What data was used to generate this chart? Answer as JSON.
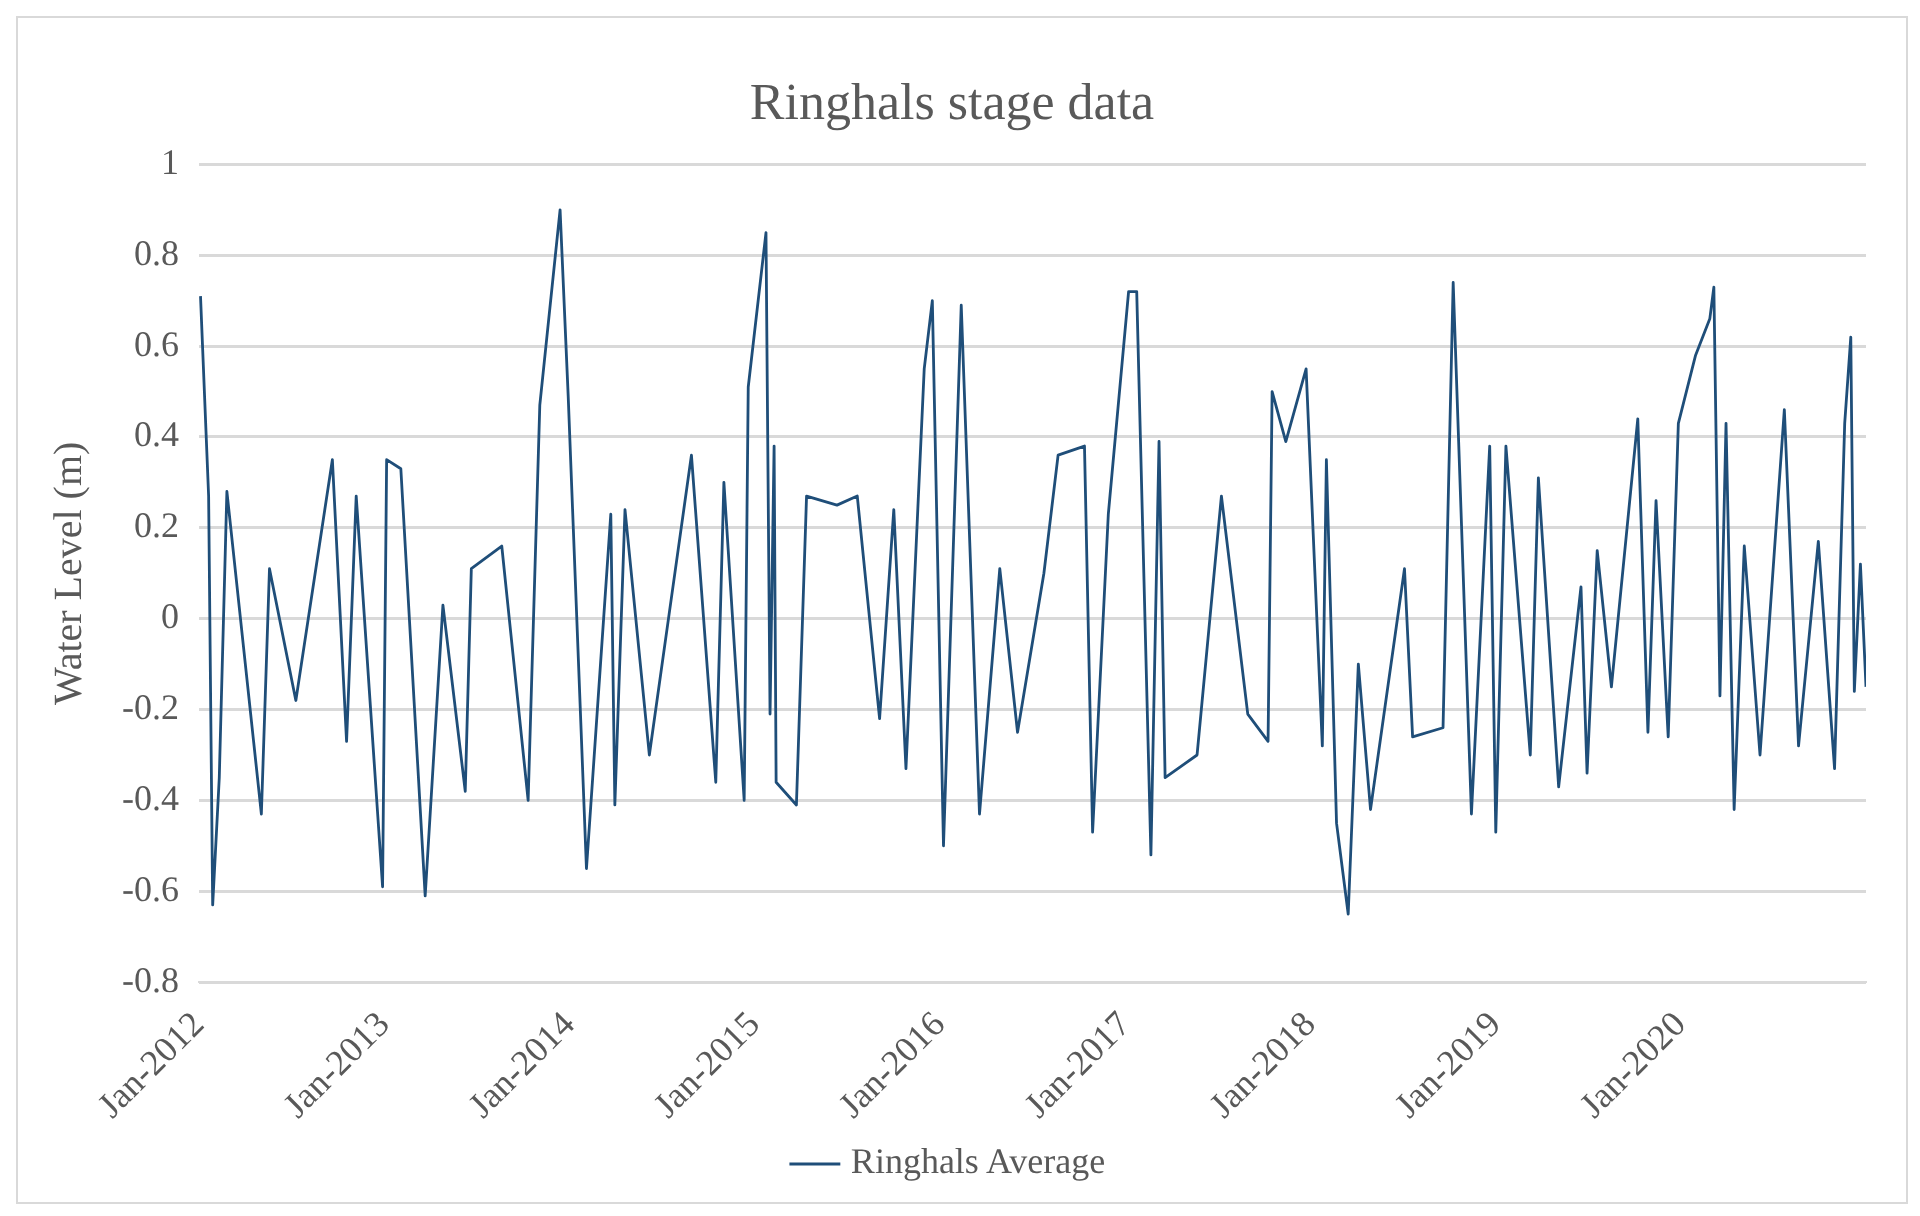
{
  "chart_data": {
    "type": "line",
    "title": "Ringhals stage data",
    "ylabel": "Water Level (m)",
    "xlim": [
      "2012-01-01",
      "2020-12-31"
    ],
    "xticks": [
      {
        "value": "2012-01-01",
        "label": "Jan-2012"
      },
      {
        "value": "2013-01-01",
        "label": "Jan-2013"
      },
      {
        "value": "2014-01-01",
        "label": "Jan-2014"
      },
      {
        "value": "2015-01-01",
        "label": "Jan-2015"
      },
      {
        "value": "2016-01-01",
        "label": "Jan-2016"
      },
      {
        "value": "2017-01-01",
        "label": "Jan-2017"
      },
      {
        "value": "2018-01-01",
        "label": "Jan-2018"
      },
      {
        "value": "2019-01-01",
        "label": "Jan-2019"
      },
      {
        "value": "2020-01-01",
        "label": "Jan-2020"
      }
    ],
    "ylim": [
      -0.8,
      1
    ],
    "yticks": [
      -0.8,
      -0.6,
      -0.4,
      -0.2,
      0,
      0.2,
      0.4,
      0.6,
      0.8,
      1
    ],
    "grid": "y",
    "legend": "bottom",
    "marker": "none",
    "line_style": "solid",
    "series": [
      {
        "name": "Ringhals Average",
        "color": "#1f4e79",
        "x": [
          "2012-01-04",
          "2012-01-20",
          "2012-01-28",
          "2012-02-10",
          "2012-02-25",
          "2012-05-03",
          "2012-05-19",
          "2012-07-10",
          "2012-09-20",
          "2012-10-18",
          "2012-11-06",
          "2012-12-28",
          "2013-01-05",
          "2013-02-02",
          "2013-03-22",
          "2013-04-26",
          "2013-06-09",
          "2013-06-21",
          "2013-08-20",
          "2013-10-11",
          "2013-11-03",
          "2013-12-13",
          "2013-12-29",
          "2014-02-03",
          "2014-03-23",
          "2014-03-31",
          "2014-04-20",
          "2014-06-07",
          "2014-07-16",
          "2014-08-29",
          "2014-10-16",
          "2014-11-01",
          "2014-12-11",
          "2014-12-19",
          "2015-01-23",
          "2015-01-31",
          "2015-02-08",
          "2015-02-12",
          "2015-03-24",
          "2015-04-13",
          "2015-06-12",
          "2015-07-22",
          "2015-09-04",
          "2015-10-02",
          "2015-10-26",
          "2015-12-01",
          "2015-12-17",
          "2016-01-08",
          "2016-02-12",
          "2016-03-19",
          "2016-04-28",
          "2016-06-02",
          "2016-07-24",
          "2016-08-21",
          "2016-10-12",
          "2016-10-28",
          "2016-11-28",
          "2017-01-07",
          "2017-01-23",
          "2017-02-20",
          "2017-03-08",
          "2017-03-20",
          "2017-05-22",
          "2017-07-09",
          "2017-08-30",
          "2017-10-09",
          "2017-10-17",
          "2017-11-13",
          "2017-12-23",
          "2018-01-24",
          "2018-02-01",
          "2018-02-21",
          "2018-03-16",
          "2018-04-05",
          "2018-04-29",
          "2018-07-05",
          "2018-07-21",
          "2018-09-19",
          "2018-10-09",
          "2018-11-14",
          "2018-12-20",
          "2019-01-01",
          "2019-01-21",
          "2019-03-10",
          "2019-03-26",
          "2019-05-05",
          "2019-06-18",
          "2019-06-30",
          "2019-07-20",
          "2019-08-17",
          "2019-10-08",
          "2019-10-28",
          "2019-11-13",
          "2019-12-07",
          "2019-12-27",
          "2020-01-30",
          "2020-02-27",
          "2020-03-06",
          "2020-03-18",
          "2020-03-30",
          "2020-04-15",
          "2020-05-05",
          "2020-06-05",
          "2020-07-23",
          "2020-08-20",
          "2020-09-28",
          "2020-10-30",
          "2020-11-19",
          "2020-12-01",
          "2020-12-08",
          "2020-12-20",
          "2020-12-31"
        ],
        "values": [
          0.71,
          0.27,
          -0.63,
          -0.35,
          0.28,
          -0.43,
          0.11,
          -0.18,
          0.35,
          -0.27,
          0.27,
          -0.59,
          0.35,
          0.33,
          -0.61,
          0.03,
          -0.38,
          0.11,
          0.16,
          -0.4,
          0.47,
          0.9,
          0.49,
          -0.55,
          0.23,
          -0.41,
          0.24,
          -0.3,
          0.01,
          0.36,
          -0.36,
          0.3,
          -0.4,
          0.51,
          0.85,
          -0.21,
          0.38,
          -0.36,
          -0.41,
          0.27,
          0.25,
          0.27,
          -0.22,
          0.24,
          -0.33,
          0.55,
          0.7,
          -0.5,
          0.69,
          -0.43,
          0.11,
          -0.25,
          0.1,
          0.36,
          0.38,
          -0.47,
          0.23,
          0.72,
          0.72,
          -0.52,
          0.39,
          -0.35,
          -0.3,
          0.27,
          -0.21,
          -0.27,
          0.5,
          0.39,
          0.55,
          -0.28,
          0.35,
          -0.45,
          -0.65,
          -0.1,
          -0.42,
          0.11,
          -0.26,
          -0.24,
          0.74,
          -0.43,
          0.38,
          -0.47,
          0.38,
          -0.3,
          0.31,
          -0.37,
          0.07,
          -0.34,
          0.15,
          -0.15,
          0.44,
          -0.25,
          0.26,
          -0.26,
          0.43,
          0.58,
          0.66,
          0.73,
          -0.17,
          0.43,
          -0.42,
          0.16,
          -0.3,
          0.46,
          -0.28,
          0.17,
          -0.33,
          0.43,
          0.62,
          -0.16,
          0.12,
          -0.15
        ]
      }
    ]
  }
}
